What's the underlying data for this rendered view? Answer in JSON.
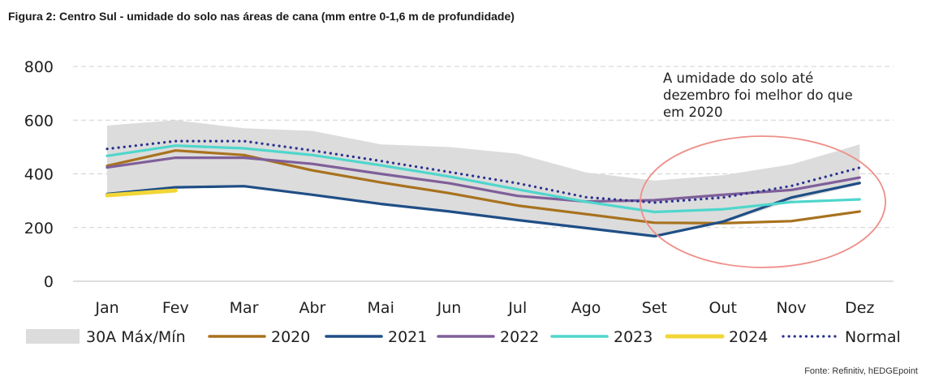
{
  "figure": {
    "title": "Figura 2: Centro Sul - umidade do solo nas áreas de cana (mm entre 0-1,6 m de profundidade)",
    "source": "Fonte: Refinitiv, hEDGEpoint",
    "annotation": "A umidade do solo até dezembro foi melhor do que em 2020"
  },
  "chart_data": {
    "type": "line",
    "title": "Figura 2: Centro Sul - umidade do solo nas áreas de cana (mm entre 0-1,6 m de profundidade)",
    "categories": [
      "Jan",
      "Fev",
      "Mar",
      "Abr",
      "Mai",
      "Jun",
      "Jul",
      "Ago",
      "Set",
      "Out",
      "Nov",
      "Dez"
    ],
    "ylim": [
      0,
      800
    ],
    "yticks": [
      0,
      200,
      400,
      600,
      800
    ],
    "grid": true,
    "legend_position": "bottom",
    "band": {
      "name": "30A Máx/Mín",
      "color": "#dcdcdc",
      "max": [
        580,
        600,
        570,
        560,
        510,
        500,
        475,
        405,
        375,
        395,
        435,
        510
      ],
      "min": [
        325,
        345,
        350,
        320,
        290,
        260,
        225,
        195,
        165,
        215,
        300,
        360
      ]
    },
    "series": [
      {
        "name": "2020",
        "color": "#a8721e",
        "style": "solid",
        "values": [
          430,
          487,
          470,
          413,
          368,
          328,
          282,
          250,
          218,
          216,
          224,
          260
        ]
      },
      {
        "name": "2021",
        "color": "#1f4e86",
        "style": "solid",
        "values": [
          325,
          350,
          354,
          322,
          288,
          260,
          228,
          198,
          168,
          222,
          312,
          366
        ]
      },
      {
        "name": "2022",
        "color": "#7f5f9a",
        "style": "solid",
        "values": [
          424,
          460,
          460,
          437,
          400,
          365,
          318,
          297,
          302,
          322,
          340,
          386
        ]
      },
      {
        "name": "2023",
        "color": "#4fd6cc",
        "style": "solid",
        "values": [
          467,
          505,
          495,
          470,
          432,
          390,
          342,
          296,
          258,
          268,
          295,
          305
        ]
      },
      {
        "name": "2024",
        "color": "#f2d635",
        "style": "solid",
        "values": [
          320,
          338,
          null,
          null,
          null,
          null,
          null,
          null,
          null,
          null,
          null,
          null
        ]
      },
      {
        "name": "Normal",
        "color": "#2b3190",
        "style": "dotted",
        "values": [
          493,
          522,
          522,
          487,
          448,
          407,
          365,
          313,
          293,
          312,
          355,
          423
        ]
      }
    ]
  }
}
